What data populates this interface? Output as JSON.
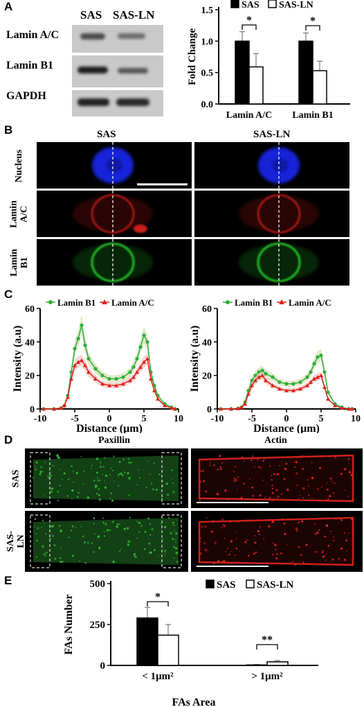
{
  "panel_a": {
    "label": "A",
    "blot": {
      "lanes": [
        "SAS",
        "SAS-LN"
      ],
      "rows": [
        "Lamin A/C",
        "Lamin B1",
        "GAPDH"
      ]
    }
  },
  "panel_b": {
    "label": "B",
    "columns": [
      "SAS",
      "SAS-LN"
    ],
    "rows": [
      {
        "label": "Nucleus",
        "color": "#1e2cff"
      },
      {
        "label": "Lamin A/C",
        "color": "#e0221a"
      },
      {
        "label": "Lamin B1",
        "color": "#27d12c"
      }
    ]
  },
  "panel_c": {
    "label": "C"
  },
  "panel_d": {
    "label": "D",
    "columns": [
      "Paxillin",
      "Actin"
    ],
    "rows": [
      "SAS",
      "SAS-LN"
    ],
    "colors": {
      "paxillin": "#36b83a",
      "actin": "#e3231d"
    }
  },
  "panel_e": {
    "label": "E"
  },
  "chart_data": [
    {
      "id": "A",
      "type": "bar",
      "ylabel": "Fold Change",
      "categories": [
        "Lamin A/C",
        "Lamin B1"
      ],
      "ylim": [
        0,
        1.5
      ],
      "yticks": [
        "0.0",
        "0.5",
        "1.0",
        "1.5"
      ],
      "legend": [
        "SAS",
        "SAS-LN"
      ],
      "series": [
        {
          "name": "SAS",
          "values": [
            1.0,
            1.0
          ],
          "errors": [
            0.15,
            0.13
          ],
          "color": "#000000"
        },
        {
          "name": "SAS-LN",
          "values": [
            0.59,
            0.53
          ],
          "errors": [
            0.21,
            0.15
          ],
          "color": "#ffffff"
        }
      ],
      "significance": [
        "*",
        "*"
      ]
    },
    {
      "id": "C-left",
      "type": "line",
      "xlabel": "Distance (μm)",
      "ylabel": "Intensity (a.u)",
      "xlim": [
        -10,
        10
      ],
      "ylim": [
        0,
        60
      ],
      "xticks": [
        "-10",
        "-5",
        "0",
        "5",
        "10"
      ],
      "yticks": [
        "0",
        "20",
        "40",
        "60"
      ],
      "legend": [
        "Lamin B1",
        "Lamin A/C"
      ],
      "series": [
        {
          "name": "Lamin B1",
          "color": "#2fae3a",
          "x": [
            -9.5,
            -8,
            -7,
            -6.5,
            -6,
            -5.5,
            -5,
            -4.5,
            -4,
            -3.5,
            -3,
            -2,
            -1,
            0,
            1,
            2,
            3,
            3.5,
            4,
            4.5,
            5,
            5.5,
            6,
            6.5,
            7,
            8,
            9,
            9.5
          ],
          "y": [
            0,
            0,
            0.5,
            2,
            8,
            22,
            36,
            42,
            50,
            38,
            30,
            24,
            20,
            18,
            18,
            19,
            22,
            25,
            30,
            37,
            44,
            40,
            22,
            14,
            8,
            3,
            1,
            0
          ]
        },
        {
          "name": "Lamin A/C",
          "color": "#e0221a",
          "x": [
            -9.5,
            -8,
            -7,
            -6.5,
            -6,
            -5.5,
            -5,
            -4.5,
            -4,
            -3.5,
            -3,
            -2,
            -1,
            0,
            1,
            2,
            3,
            3.5,
            4,
            4.5,
            5,
            5.5,
            6,
            6.5,
            7,
            8,
            9,
            9.5
          ],
          "y": [
            0,
            0,
            0.5,
            2,
            7,
            18,
            26,
            28,
            29,
            26,
            22,
            18,
            15,
            14,
            14,
            15,
            17,
            19,
            22,
            25,
            28,
            30,
            18,
            11,
            6,
            2,
            0.5,
            0
          ]
        }
      ]
    },
    {
      "id": "C-right",
      "type": "line",
      "xlabel": "Distance (μm)",
      "ylabel": "Intensity (a.u)",
      "xlim": [
        -10,
        10
      ],
      "ylim": [
        0,
        60
      ],
      "xticks": [
        "-10",
        "-5",
        "0",
        "5",
        "10"
      ],
      "yticks": [
        "0",
        "20",
        "40",
        "60"
      ],
      "legend": [
        "Lamin B1",
        "Lamin A/C"
      ],
      "series": [
        {
          "name": "Lamin B1",
          "color": "#2fae3a",
          "x": [
            -9.5,
            -8,
            -7,
            -6.5,
            -6,
            -5.5,
            -5,
            -4.5,
            -4,
            -3.5,
            -3,
            -2,
            -1,
            0,
            1,
            2,
            3,
            3.5,
            4,
            4.5,
            5,
            5.5,
            6,
            7,
            8,
            9,
            9.5
          ],
          "y": [
            0,
            0,
            0.3,
            1,
            4,
            11,
            17,
            20,
            22,
            23,
            21,
            19,
            16,
            15,
            15,
            16,
            19,
            22,
            27,
            31,
            32,
            22,
            10,
            3,
            1,
            0,
            0
          ]
        },
        {
          "name": "Lamin A/C",
          "color": "#e0221a",
          "x": [
            -9.5,
            -8,
            -7,
            -6.5,
            -6,
            -5.5,
            -5,
            -4.5,
            -4,
            -3.5,
            -3,
            -2,
            -1,
            0,
            1,
            2,
            3,
            3.5,
            4,
            4.5,
            5,
            5.5,
            6,
            7,
            8,
            9,
            9.5
          ],
          "y": [
            0,
            0,
            0.3,
            1,
            3,
            9,
            14,
            17,
            19,
            20,
            17,
            14,
            12,
            11,
            11,
            12,
            14,
            16,
            18,
            19,
            20,
            13,
            6,
            2,
            0.5,
            0,
            0
          ]
        }
      ]
    },
    {
      "id": "E",
      "type": "bar",
      "xlabel": "FAs Area",
      "ylabel": "FAs Number",
      "categories": [
        "< 1μm²",
        "> 1μm²"
      ],
      "ylim": [
        0,
        500
      ],
      "yticks": [
        "0",
        "250",
        "500"
      ],
      "legend": [
        "SAS",
        "SAS-LN"
      ],
      "series": [
        {
          "name": "SAS",
          "values": [
            290,
            3
          ],
          "errors": [
            65,
            3
          ],
          "color": "#000000"
        },
        {
          "name": "SAS-LN",
          "values": [
            185,
            22
          ],
          "errors": [
            65,
            8
          ],
          "color": "#ffffff"
        }
      ],
      "significance": [
        "*",
        "**"
      ]
    }
  ]
}
